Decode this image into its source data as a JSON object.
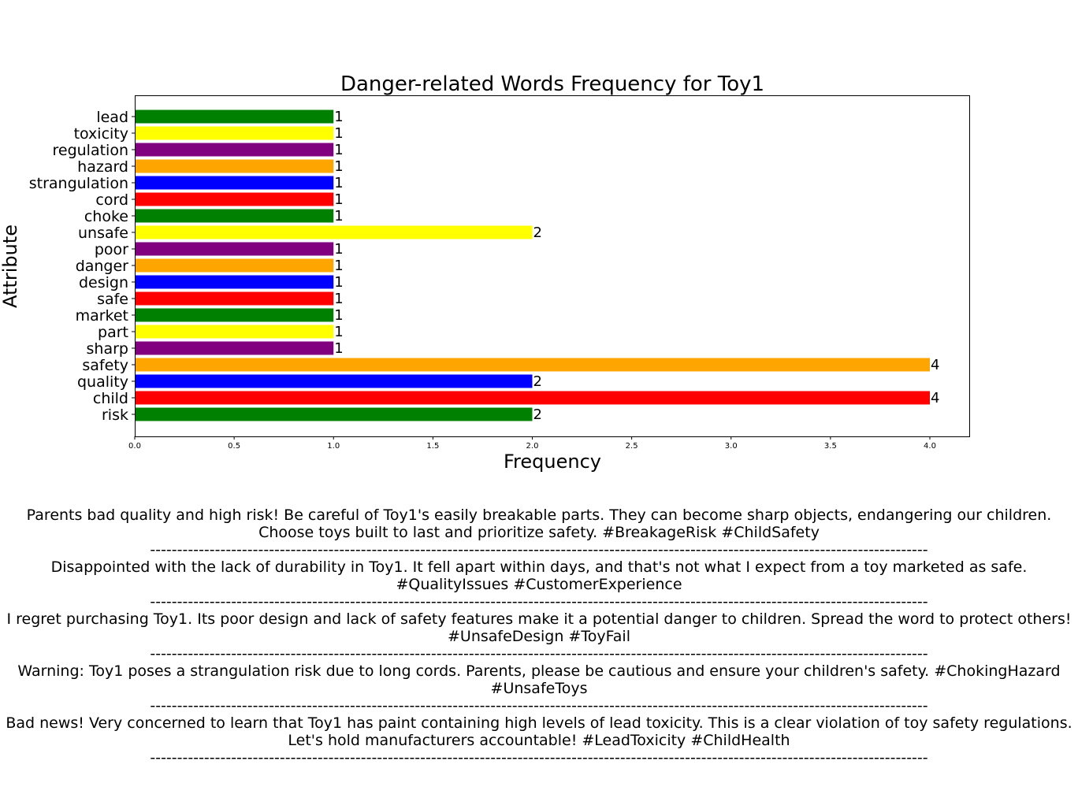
{
  "chart_data": {
    "type": "bar",
    "orientation": "horizontal",
    "title": "Danger-related Words Frequency for Toy1",
    "xlabel": "Frequency",
    "ylabel": "Attribute",
    "xlim": [
      0,
      4.2
    ],
    "x_ticks": [
      "0.0",
      "0.5",
      "1.0",
      "1.5",
      "2.0",
      "2.5",
      "3.0",
      "3.5",
      "4.0"
    ],
    "grid": false,
    "categories": [
      "risk",
      "child",
      "quality",
      "safety",
      "sharp",
      "part",
      "market",
      "safe",
      "design",
      "danger",
      "poor",
      "unsafe",
      "choke",
      "cord",
      "strangulation",
      "hazard",
      "regulation",
      "toxicity",
      "lead"
    ],
    "values": [
      2,
      4,
      2,
      4,
      1,
      1,
      1,
      1,
      1,
      1,
      1,
      2,
      1,
      1,
      1,
      1,
      1,
      1,
      1
    ],
    "bar_colors": [
      "#008000",
      "#ff0000",
      "#0000ff",
      "#ffa500",
      "#800080",
      "#ffff00",
      "#008000",
      "#ff0000",
      "#0000ff",
      "#ffa500",
      "#800080",
      "#ffff00",
      "#008000",
      "#ff0000",
      "#0000ff",
      "#ffa500",
      "#800080",
      "#ffff00",
      "#008000"
    ]
  },
  "posts": [
    {
      "text": "Parents bad quality and high risk! Be careful of Toy1's easily breakable parts. They can become sharp objects, endangering our children. Choose toys built to last and prioritize safety. #BreakageRisk #ChildSafety",
      "divider": "------------------------------------------------------------------------------------------------------------------------------------------------"
    },
    {
      "text": "Disappointed with the lack of durability in Toy1. It fell apart within days, and that's not what I expect from a toy marketed as safe. #QualityIssues #CustomerExperience",
      "divider": "------------------------------------------------------------------------------------------------------------------------------------------------"
    },
    {
      "text": "I regret purchasing Toy1. Its poor design and lack of safety features make it a potential danger to children. Spread the word to protect others! #UnsafeDesign #ToyFail",
      "divider": "------------------------------------------------------------------------------------------------------------------------------------------------"
    },
    {
      "text": "Warning: Toy1 poses a strangulation risk due to long cords. Parents, please be cautious and ensure your children's safety. #ChokingHazard #UnsafeToys",
      "divider": "------------------------------------------------------------------------------------------------------------------------------------------------"
    },
    {
      "text": "Bad news! Very concerned to learn that Toy1 has paint containing high levels of lead toxicity. This is a clear violation of toy safety regulations. Let's hold manufacturers accountable! #LeadToxicity #ChildHealth",
      "divider": "------------------------------------------------------------------------------------------------------------------------------------------------"
    }
  ]
}
